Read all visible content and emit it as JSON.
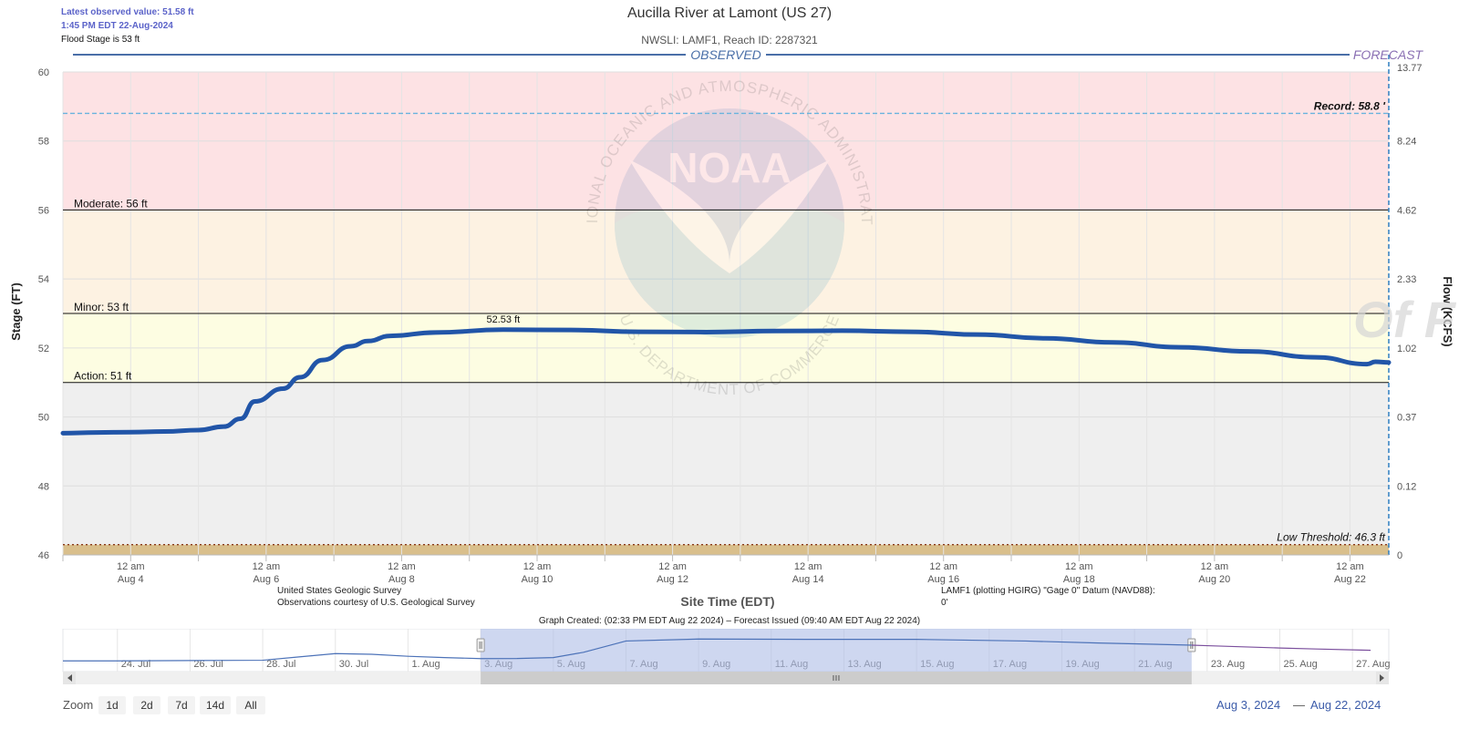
{
  "header": {
    "latest_observed": "Latest observed value: 51.58 ft",
    "observed_time": "1:45 PM EDT 22-Aug-2024",
    "flood_stage_note": "Flood Stage is 53 ft"
  },
  "chart_data": {
    "type": "line",
    "title": "Aucilla River at Lamont (US 27)",
    "subtitle": "NWSLI: LAMF1, Reach ID: 2287321",
    "xlabel": "Site Time (EDT)",
    "ylabel": "Stage (FT)",
    "y2label": "Flow (KCFS)",
    "ylim": [
      46,
      60
    ],
    "xlim": [
      "2024-08-03",
      "2024-08-22T13:45"
    ],
    "yticks": [
      46,
      48,
      50,
      52,
      54,
      56,
      58,
      60
    ],
    "y2ticks": [
      {
        "stage": 46,
        "label": "0"
      },
      {
        "stage": 48,
        "label": "0.12"
      },
      {
        "stage": 50,
        "label": "0.37"
      },
      {
        "stage": 52,
        "label": "1.02"
      },
      {
        "stage": 54,
        "label": "2.33"
      },
      {
        "stage": 56,
        "label": "4.62"
      },
      {
        "stage": 58,
        "label": "8.24"
      },
      {
        "stage": 60,
        "label": "13.77"
      }
    ],
    "xticks": [
      {
        "date": "2024-08-04",
        "l1": "12 am",
        "l2": "Aug 4"
      },
      {
        "date": "2024-08-06",
        "l1": "12 am",
        "l2": "Aug 6"
      },
      {
        "date": "2024-08-08",
        "l1": "12 am",
        "l2": "Aug 8"
      },
      {
        "date": "2024-08-10",
        "l1": "12 am",
        "l2": "Aug 10"
      },
      {
        "date": "2024-08-12",
        "l1": "12 am",
        "l2": "Aug 12"
      },
      {
        "date": "2024-08-14",
        "l1": "12 am",
        "l2": "Aug 14"
      },
      {
        "date": "2024-08-16",
        "l1": "12 am",
        "l2": "Aug 16"
      },
      {
        "date": "2024-08-18",
        "l1": "12 am",
        "l2": "Aug 18"
      },
      {
        "date": "2024-08-20",
        "l1": "12 am",
        "l2": "Aug 20"
      },
      {
        "date": "2024-08-22",
        "l1": "12 am",
        "l2": "Aug 22"
      }
    ],
    "bands": [
      {
        "from": 46,
        "to": 46.3,
        "color": "#d9bf8c"
      },
      {
        "from": 46.3,
        "to": 51,
        "color": "#efefef"
      },
      {
        "from": 51,
        "to": 53,
        "color": "#fdfde2"
      },
      {
        "from": 53,
        "to": 56,
        "color": "#fdf2e2"
      },
      {
        "from": 56,
        "to": 60,
        "color": "#fde2e4"
      }
    ],
    "thresholds": [
      {
        "name": "Action",
        "value": 51,
        "label": "Action: 51 ft"
      },
      {
        "name": "Minor",
        "value": 53,
        "label": "Minor: 53 ft"
      },
      {
        "name": "Moderate",
        "value": 56,
        "label": "Moderate: 56 ft"
      }
    ],
    "record": {
      "value": 58.8,
      "label": "Record: 58.8 '"
    },
    "low_threshold": {
      "value": 46.3,
      "label": "Low Threshold: 46.3 ft"
    },
    "peak_label": "52.53 ft",
    "peak": {
      "x": "2024-08-09T12:00",
      "y": 52.53
    },
    "observed_label": "OBSERVED",
    "forecast_label": "FORECAST",
    "series": [
      {
        "name": "Observed",
        "color": "#2155a8",
        "x": [
          "2024-08-03T00:00",
          "2024-08-03T12:00",
          "2024-08-04T00:00",
          "2024-08-04T12:00",
          "2024-08-05T00:00",
          "2024-08-05T09:00",
          "2024-08-05T15:00",
          "2024-08-05T20:00",
          "2024-08-06T06:00",
          "2024-08-06T12:00",
          "2024-08-06T20:00",
          "2024-08-07T06:00",
          "2024-08-07T12:00",
          "2024-08-07T20:00",
          "2024-08-08T12:00",
          "2024-08-09T12:00",
          "2024-08-10T12:00",
          "2024-08-11T12:00",
          "2024-08-12T12:00",
          "2024-08-13T12:00",
          "2024-08-14T12:00",
          "2024-08-15T12:00",
          "2024-08-16T12:00",
          "2024-08-17T12:00",
          "2024-08-18T12:00",
          "2024-08-19T12:00",
          "2024-08-20T12:00",
          "2024-08-21T12:00",
          "2024-08-22T06:00",
          "2024-08-22T09:00",
          "2024-08-22T13:45"
        ],
        "y": [
          49.53,
          49.55,
          49.56,
          49.58,
          49.62,
          49.72,
          49.95,
          50.45,
          50.82,
          51.15,
          51.65,
          52.05,
          52.2,
          52.35,
          52.45,
          52.53,
          52.52,
          52.47,
          52.46,
          52.49,
          52.5,
          52.47,
          52.39,
          52.28,
          52.16,
          52.02,
          51.9,
          51.73,
          51.53,
          51.6,
          51.58
        ]
      }
    ]
  },
  "credits": {
    "usgs_line1": "United States Geologic Survey",
    "usgs_line2": "Observations courtesy of U.S. Geological Survey",
    "datum_line1": "LAMF1 (plotting HGIRG) \"Gage 0\" Datum (NAVD88):",
    "datum_line2": "0'",
    "graph_created": "Graph Created: (02:33 PM EDT Aug 22 2024) – Forecast Issued (09:40 AM EDT Aug 22 2024)"
  },
  "watermark": {
    "logo_text": "NOAA",
    "ring_top": "NATIONAL OCEANIC AND ATMOSPHERIC ADMINISTRATION",
    "ring_bottom": "U.S. DEPARTMENT OF COMMERCE"
  },
  "navigator": {
    "labels": [
      {
        "date": "2024-07-24",
        "text": "24. Jul"
      },
      {
        "date": "2024-07-26",
        "text": "26. Jul"
      },
      {
        "date": "2024-07-28",
        "text": "28. Jul"
      },
      {
        "date": "2024-07-30",
        "text": "30. Jul"
      },
      {
        "date": "2024-08-01",
        "text": "1. Aug"
      },
      {
        "date": "2024-08-03",
        "text": "3. Aug"
      },
      {
        "date": "2024-08-05",
        "text": "5. Aug"
      },
      {
        "date": "2024-08-07",
        "text": "7. Aug"
      },
      {
        "date": "2024-08-09",
        "text": "9. Aug"
      },
      {
        "date": "2024-08-11",
        "text": "11. Aug"
      },
      {
        "date": "2024-08-13",
        "text": "13. Aug"
      },
      {
        "date": "2024-08-15",
        "text": "15. Aug"
      },
      {
        "date": "2024-08-17",
        "text": "17. Aug"
      },
      {
        "date": "2024-08-19",
        "text": "19. Aug"
      },
      {
        "date": "2024-08-21",
        "text": "21. Aug"
      },
      {
        "date": "2024-08-23",
        "text": "23. Aug"
      },
      {
        "date": "2024-08-25",
        "text": "25. Aug"
      },
      {
        "date": "2024-08-27",
        "text": "27. Aug"
      }
    ],
    "range": [
      "2024-07-22T12:00",
      "2024-08-28T00:00"
    ],
    "selection": [
      "2024-08-03",
      "2024-08-22T13:45"
    ],
    "observed": {
      "x": [
        "2024-07-22T12:00",
        "2024-07-24",
        "2024-07-26",
        "2024-07-28",
        "2024-07-29",
        "2024-07-30",
        "2024-07-31",
        "2024-08-01",
        "2024-08-02",
        "2024-08-03",
        "2024-08-04",
        "2024-08-05",
        "2024-08-05T20:00",
        "2024-08-07",
        "2024-08-09",
        "2024-08-12",
        "2024-08-15",
        "2024-08-18",
        "2024-08-20",
        "2024-08-22T13:45"
      ],
      "y": [
        49.2,
        49.2,
        49.25,
        49.3,
        49.8,
        50.3,
        50.2,
        49.9,
        49.7,
        49.55,
        49.56,
        49.7,
        50.5,
        52.2,
        52.5,
        52.45,
        52.45,
        52.2,
        51.9,
        51.58
      ]
    },
    "forecast": {
      "x": [
        "2024-08-22T13:45",
        "2024-08-23",
        "2024-08-25",
        "2024-08-26",
        "2024-08-27T12:00"
      ],
      "y": [
        51.58,
        51.5,
        51.15,
        51.0,
        50.8
      ]
    }
  },
  "controls": {
    "zoom_label": "Zoom",
    "zoom_buttons": [
      "1d",
      "2d",
      "7d",
      "14d",
      "All"
    ],
    "range_from": "Aug 3, 2024",
    "range_sep": "—",
    "range_to": "Aug 22, 2024"
  },
  "side_overlay": "Of F"
}
